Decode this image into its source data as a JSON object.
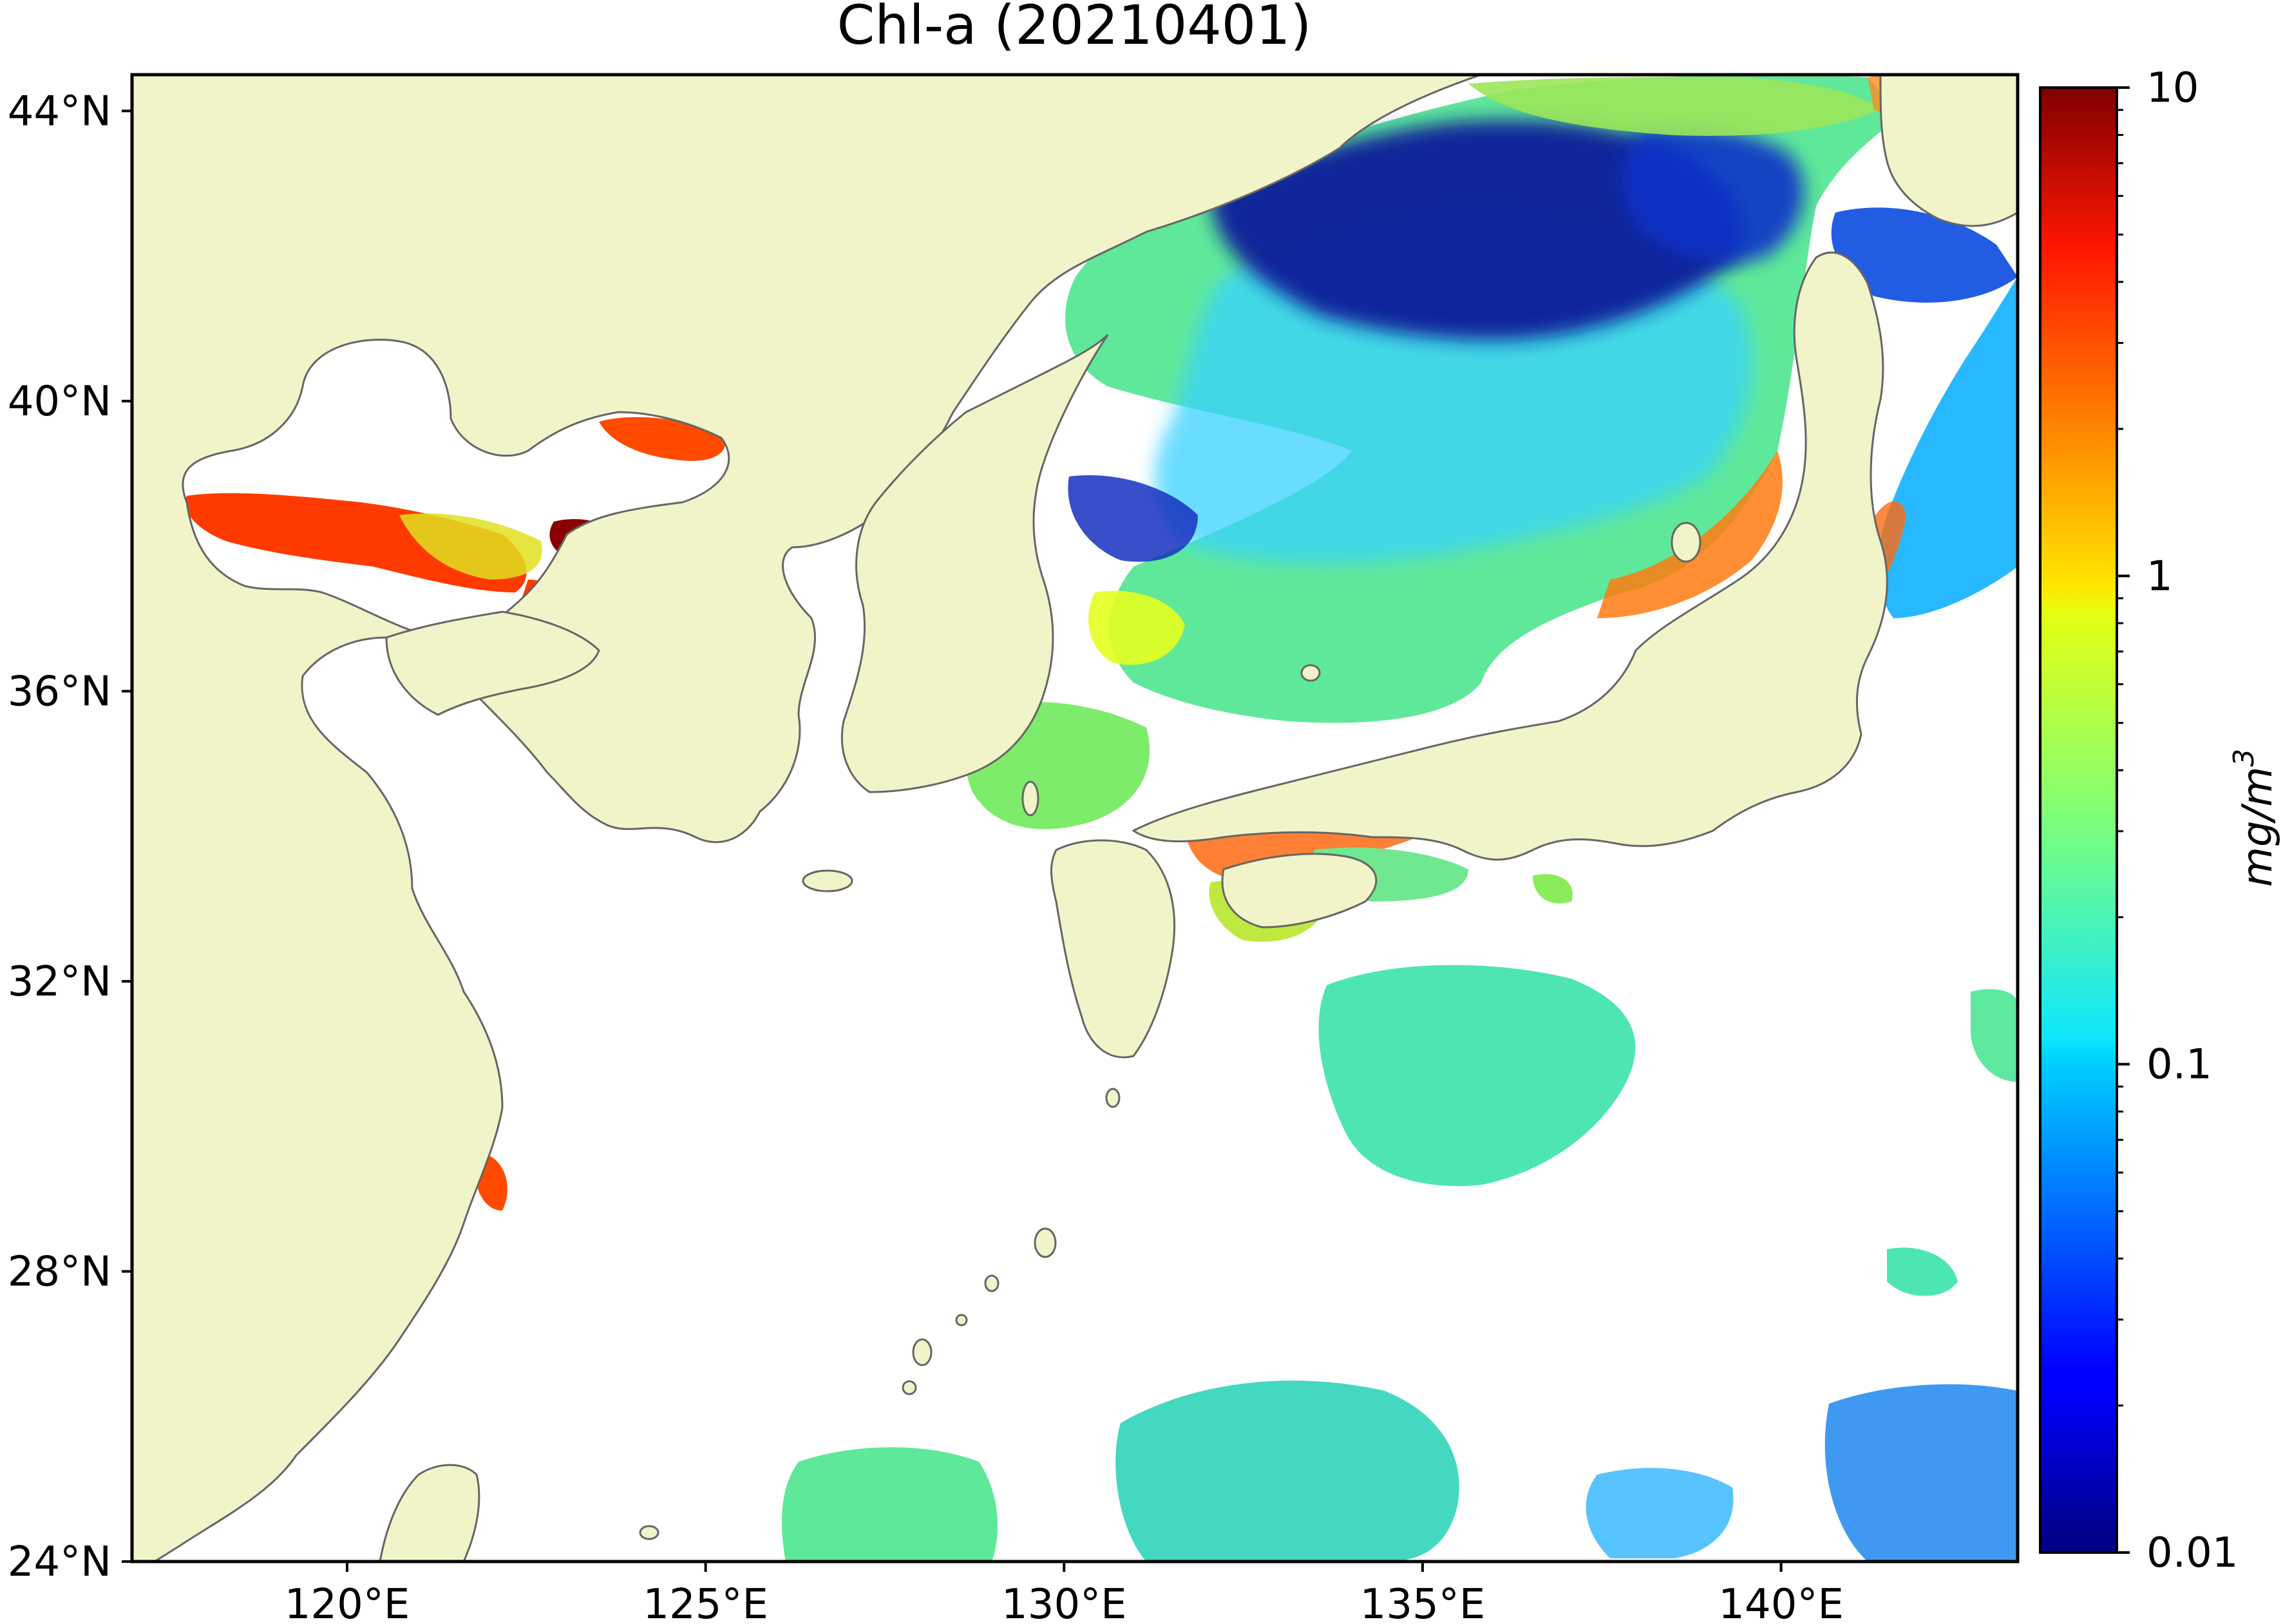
{
  "title": "Chl-a (20210401)",
  "axes": {
    "lon_min": 117,
    "lon_max": 143.3,
    "lat_min": 24,
    "lat_max": 44.5,
    "x_ticks": [
      {
        "value": 120,
        "label": "120°E"
      },
      {
        "value": 125,
        "label": "125°E"
      },
      {
        "value": 130,
        "label": "130°E"
      },
      {
        "value": 135,
        "label": "135°E"
      },
      {
        "value": 140,
        "label": "140°E"
      }
    ],
    "y_ticks": [
      {
        "value": 44,
        "label": "44°N"
      },
      {
        "value": 40,
        "label": "40°N"
      },
      {
        "value": 36,
        "label": "36°N"
      },
      {
        "value": 32,
        "label": "32°N"
      },
      {
        "value": 28,
        "label": "28°N"
      },
      {
        "value": 24,
        "label": "24°N"
      }
    ]
  },
  "colorbar": {
    "label": "mg/m",
    "label_exponent": "3",
    "scale": "log",
    "min": 0.01,
    "max": 10,
    "ticks": [
      {
        "value": 10,
        "label": "10"
      },
      {
        "value": 1,
        "label": "1"
      },
      {
        "value": 0.1,
        "label": "0.1"
      },
      {
        "value": 0.01,
        "label": "0.01"
      }
    ],
    "colormap": "jet"
  },
  "colors": {
    "land": "#f0f4c8",
    "coastline": "#666666",
    "no_data": "#ffffff",
    "frame": "#000000"
  }
}
